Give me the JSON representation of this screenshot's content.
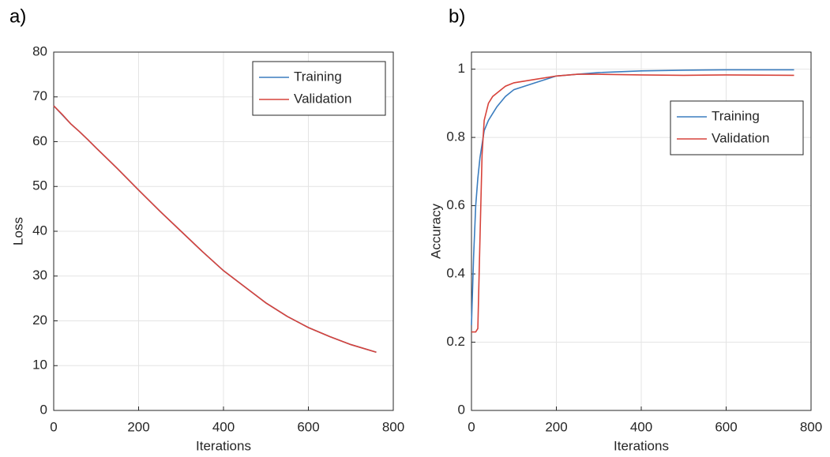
{
  "chart_data": [
    {
      "type": "line",
      "panel_label": "a)",
      "xlabel": "Iterations",
      "ylabel": "Loss",
      "x": [
        0,
        20,
        40,
        60,
        80,
        100,
        150,
        200,
        250,
        300,
        350,
        400,
        450,
        500,
        550,
        600,
        650,
        700,
        760
      ],
      "series": [
        {
          "name": "Training",
          "color": "#3b7dbf",
          "values": [
            68,
            66,
            64,
            62.3,
            60.5,
            58.6,
            54,
            49.2,
            44.5,
            40,
            35.5,
            31.2,
            27.6,
            24,
            21,
            18.5,
            16.5,
            14.7,
            13
          ]
        },
        {
          "name": "Validation",
          "color": "#d7433b",
          "values": [
            68,
            66.1,
            64,
            62.3,
            60.5,
            58.6,
            54,
            49.2,
            44.5,
            40,
            35.5,
            31.2,
            27.6,
            24,
            21,
            18.5,
            16.5,
            14.7,
            13
          ]
        }
      ],
      "xlim": [
        0,
        800
      ],
      "xticks": [
        0,
        200,
        400,
        600,
        800
      ],
      "ylim": [
        0,
        80
      ],
      "yticks": [
        0,
        10,
        20,
        30,
        40,
        50,
        60,
        70,
        80
      ],
      "grid": true,
      "legend": "upper right"
    },
    {
      "type": "line",
      "panel_label": "b)",
      "xlabel": "Iterations",
      "ylabel": "Accuracy",
      "x": [
        0,
        5,
        10,
        15,
        20,
        25,
        30,
        40,
        50,
        60,
        80,
        100,
        150,
        200,
        250,
        300,
        400,
        500,
        600,
        760
      ],
      "series": [
        {
          "name": "Training",
          "color": "#3b7dbf",
          "values": [
            0.25,
            0.45,
            0.6,
            0.68,
            0.74,
            0.78,
            0.82,
            0.85,
            0.87,
            0.89,
            0.92,
            0.94,
            0.96,
            0.98,
            0.985,
            0.99,
            0.995,
            0.997,
            0.998,
            0.998
          ]
        },
        {
          "name": "Validation",
          "color": "#d7433b",
          "values": [
            0.23,
            0.23,
            0.23,
            0.24,
            0.5,
            0.75,
            0.85,
            0.9,
            0.92,
            0.93,
            0.95,
            0.96,
            0.97,
            0.98,
            0.985,
            0.985,
            0.983,
            0.982,
            0.983,
            0.982
          ]
        }
      ],
      "xlim": [
        0,
        800
      ],
      "xticks": [
        0,
        200,
        400,
        600,
        800
      ],
      "ylim": [
        0,
        1.05
      ],
      "yticks": [
        0,
        0.2,
        0.4,
        0.6,
        0.8,
        1
      ],
      "grid": true,
      "legend": "center right"
    }
  ]
}
